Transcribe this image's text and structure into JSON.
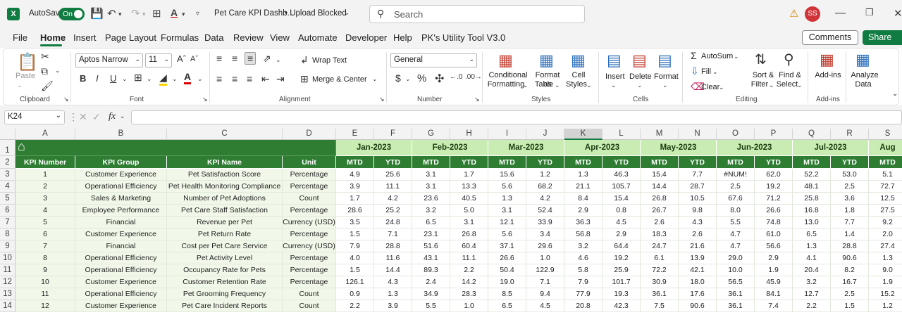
{
  "titlebar": {
    "autosave_label": "AutoSave",
    "autosave_state": "On",
    "doc_title": "Pet Care KPI Dashb...",
    "upload_status": "• Upload Blocked",
    "search_placeholder": "Search",
    "user_initials": "SS"
  },
  "menu": [
    "File",
    "Home",
    "Insert",
    "Page Layout",
    "Formulas",
    "Data",
    "Review",
    "View",
    "Automate",
    "Developer",
    "Help",
    "PK's Utility Tool V3.0"
  ],
  "comments_label": "Comments",
  "share_label": "Share",
  "ribbon": {
    "paste": "Paste",
    "clipboard": "Clipboard",
    "font_name": "Aptos Narrow",
    "font_size": "11",
    "font": "Font",
    "wrap_text": "Wrap Text",
    "merge_center": "Merge & Center",
    "alignment": "Alignment",
    "number_format": "General",
    "number": "Number",
    "conditional_formatting_1": "Conditional",
    "conditional_formatting_2": "Formatting",
    "format_as_table_1": "Format as",
    "format_as_table_2": "Table",
    "cell_styles_1": "Cell",
    "cell_styles_2": "Styles",
    "styles": "Styles",
    "insert": "Insert",
    "delete": "Delete",
    "format": "Format",
    "cells": "Cells",
    "autosum": "AutoSum",
    "fill": "Fill",
    "clear": "Clear",
    "sort_filter_1": "Sort &",
    "sort_filter_2": "Filter",
    "find_select_1": "Find &",
    "find_select_2": "Select",
    "editing": "Editing",
    "addins": "Add-ins",
    "addins_group": "Add-ins",
    "analyze_1": "Analyze",
    "analyze_2": "Data"
  },
  "formula_bar": {
    "name_box": "K24",
    "fx": "fx",
    "formula": ""
  },
  "columns": [
    "A",
    "B",
    "C",
    "D",
    "E",
    "F",
    "G",
    "H",
    "I",
    "J",
    "K",
    "L",
    "M",
    "N",
    "O",
    "P",
    "Q",
    "R",
    "S"
  ],
  "row_numbers": [
    "1",
    "2",
    "3",
    "4",
    "5",
    "6",
    "7",
    "8",
    "9",
    "10",
    "11",
    "12",
    "13",
    "14"
  ],
  "headers": {
    "kpi_number": "KPI Number",
    "kpi_group": "KPI Group",
    "kpi_name": "KPI Name",
    "unit": "Unit",
    "months": [
      "Jan-2023",
      "Feb-2023",
      "Mar-2023",
      "Apr-2023",
      "May-2023",
      "Jun-2023",
      "Jul-2023",
      "Aug"
    ],
    "mtd": "MTD",
    "ytd": "YTD"
  },
  "rows": [
    {
      "num": "1",
      "group": "Customer Experience",
      "name": "Pet Satisfaction Score",
      "unit": "Percentage",
      "vals": [
        "4.9",
        "25.6",
        "3.1",
        "1.7",
        "15.6",
        "1.2",
        "1.3",
        "46.3",
        "15.4",
        "7.7",
        "#NUM!",
        "62.0",
        "52.2",
        "53.0",
        "5.1"
      ]
    },
    {
      "num": "2",
      "group": "Operational Efficiency",
      "name": "Pet Health Monitoring Compliance",
      "unit": "Percentage",
      "vals": [
        "3.9",
        "11.1",
        "3.1",
        "13.3",
        "5.6",
        "68.2",
        "21.1",
        "105.7",
        "14.4",
        "28.7",
        "2.5",
        "19.2",
        "48.1",
        "2.5",
        "72.7"
      ]
    },
    {
      "num": "3",
      "group": "Sales & Marketing",
      "name": "Number of Pet Adoptions",
      "unit": "Count",
      "vals": [
        "1.7",
        "4.2",
        "23.6",
        "40.5",
        "1.3",
        "4.2",
        "8.4",
        "15.4",
        "26.8",
        "10.5",
        "67.6",
        "71.2",
        "25.8",
        "3.6",
        "12.5"
      ]
    },
    {
      "num": "4",
      "group": "Employee Performance",
      "name": "Pet Care Staff Satisfaction",
      "unit": "Percentage",
      "vals": [
        "28.6",
        "25.2",
        "3.2",
        "5.0",
        "3.1",
        "52.4",
        "2.9",
        "0.8",
        "26.7",
        "9.8",
        "8.0",
        "26.6",
        "16.8",
        "1.8",
        "27.5"
      ]
    },
    {
      "num": "5",
      "group": "Financial",
      "name": "Revenue per Pet",
      "unit": "Currency (USD)",
      "vals": [
        "3.5",
        "24.8",
        "6.5",
        "3.1",
        "12.1",
        "33.9",
        "36.3",
        "4.5",
        "2.6",
        "4.3",
        "5.5",
        "74.8",
        "13.0",
        "7.7",
        "9.2"
      ]
    },
    {
      "num": "6",
      "group": "Customer Experience",
      "name": "Pet Return Rate",
      "unit": "Percentage",
      "vals": [
        "1.5",
        "7.1",
        "23.1",
        "26.8",
        "5.6",
        "3.4",
        "56.8",
        "2.9",
        "18.3",
        "2.6",
        "4.7",
        "61.0",
        "6.5",
        "1.4",
        "2.0"
      ]
    },
    {
      "num": "7",
      "group": "Financial",
      "name": "Cost per Pet Care Service",
      "unit": "Currency (USD)",
      "vals": [
        "7.9",
        "28.8",
        "51.6",
        "60.4",
        "37.1",
        "29.6",
        "3.2",
        "64.4",
        "24.7",
        "21.6",
        "4.7",
        "56.6",
        "1.3",
        "28.8",
        "27.4"
      ]
    },
    {
      "num": "8",
      "group": "Operational Efficiency",
      "name": "Pet Activity Level",
      "unit": "Percentage",
      "vals": [
        "4.0",
        "11.6",
        "43.1",
        "11.1",
        "26.6",
        "1.0",
        "4.6",
        "19.2",
        "6.1",
        "13.9",
        "29.0",
        "2.9",
        "4.1",
        "90.6",
        "1.3"
      ]
    },
    {
      "num": "9",
      "group": "Operational Efficiency",
      "name": "Occupancy Rate for Pets",
      "unit": "Percentage",
      "vals": [
        "1.5",
        "14.4",
        "89.3",
        "2.2",
        "50.4",
        "122.9",
        "5.8",
        "25.9",
        "72.2",
        "42.1",
        "10.0",
        "1.9",
        "20.4",
        "8.2",
        "9.0"
      ]
    },
    {
      "num": "10",
      "group": "Customer Experience",
      "name": "Customer Retention Rate",
      "unit": "Percentage",
      "vals": [
        "126.1",
        "4.3",
        "2.4",
        "14.2",
        "19.0",
        "7.1",
        "7.9",
        "101.7",
        "30.9",
        "18.0",
        "56.5",
        "45.9",
        "3.2",
        "16.7",
        "1.9"
      ]
    },
    {
      "num": "11",
      "group": "Operational Efficiency",
      "name": "Pet Grooming Frequency",
      "unit": "Count",
      "vals": [
        "0.9",
        "1.3",
        "34.9",
        "28.3",
        "8.5",
        "9.4",
        "77.9",
        "19.3",
        "36.1",
        "17.6",
        "36.1",
        "84.1",
        "12.7",
        "2.5",
        "15.2"
      ]
    },
    {
      "num": "12",
      "group": "Customer Experience",
      "name": "Pet Care Incident Reports",
      "unit": "Count",
      "vals": [
        "2.2",
        "3.9",
        "5.5",
        "1.0",
        "6.5",
        "4.5",
        "20.8",
        "42.3",
        "7.5",
        "90.6",
        "36.1",
        "7.4",
        "2.2",
        "1.5",
        "1.2"
      ]
    }
  ],
  "colors": {
    "excel_green": "#107c41",
    "header_green": "#2e7d32",
    "month_green": "#c8ecb2",
    "row_tint": "#f1f8e9"
  }
}
